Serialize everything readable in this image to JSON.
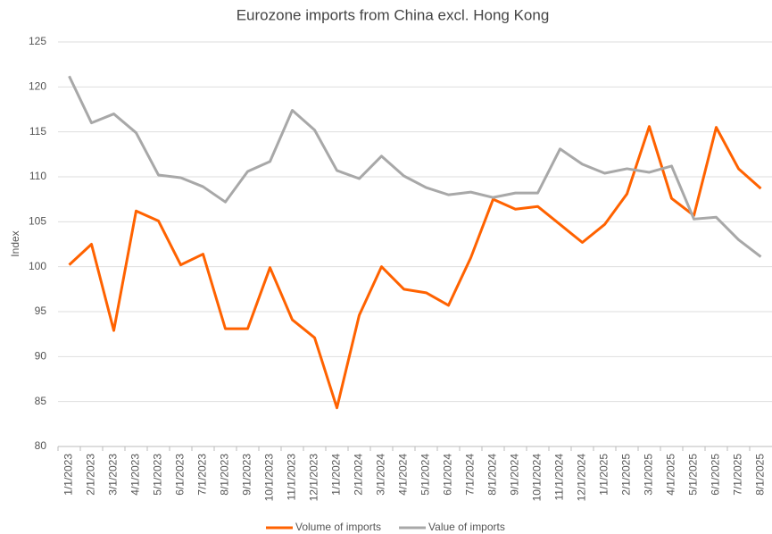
{
  "chart_data": {
    "type": "line",
    "title": "Eurozone imports from China excl. Hong Kong",
    "y_label": "Index",
    "categories": [
      "1/1/2023",
      "2/1/2023",
      "3/1/2023",
      "4/1/2023",
      "5/1/2023",
      "6/1/2023",
      "7/1/2023",
      "8/1/2023",
      "9/1/2023",
      "10/1/2023",
      "11/1/2023",
      "12/1/2023",
      "1/1/2024",
      "2/1/2024",
      "3/1/2024",
      "4/1/2024",
      "5/1/2024",
      "6/1/2024",
      "7/1/2024",
      "8/1/2024",
      "9/1/2024",
      "10/1/2024",
      "11/1/2024",
      "12/1/2024",
      "1/1/2025",
      "2/1/2025",
      "3/1/2025",
      "4/1/2025",
      "5/1/2025",
      "6/1/2025",
      "7/1/2025",
      "8/1/2025"
    ],
    "series": [
      {
        "name": "Volume of imports",
        "color": "#ff6200",
        "values": [
          100.2,
          102.5,
          92.9,
          106.2,
          105.1,
          100.2,
          101.4,
          93.1,
          93.1,
          99.9,
          94.1,
          92.1,
          84.3,
          94.6,
          100.0,
          97.5,
          97.1,
          95.7,
          101.0,
          107.5,
          106.4,
          106.7,
          104.7,
          102.7,
          104.7,
          108.1,
          115.6,
          107.6,
          105.7,
          115.5,
          110.9,
          108.7
        ]
      },
      {
        "name": "Value of imports",
        "color": "#a8a8a8",
        "values": [
          121.2,
          116.0,
          117.0,
          114.9,
          110.2,
          109.9,
          108.9,
          107.2,
          110.6,
          111.7,
          117.4,
          115.2,
          110.7,
          109.8,
          112.3,
          110.1,
          108.8,
          108.0,
          108.3,
          107.7,
          108.2,
          108.2,
          113.1,
          111.4,
          110.4,
          110.9,
          110.5,
          111.2,
          105.3,
          105.5,
          103.0,
          101.1
        ]
      }
    ],
    "ylim": [
      80,
      125
    ],
    "yticks": [
      80,
      85,
      90,
      95,
      100,
      105,
      110,
      115,
      120,
      125
    ],
    "grid": true,
    "legend": "bottom"
  }
}
